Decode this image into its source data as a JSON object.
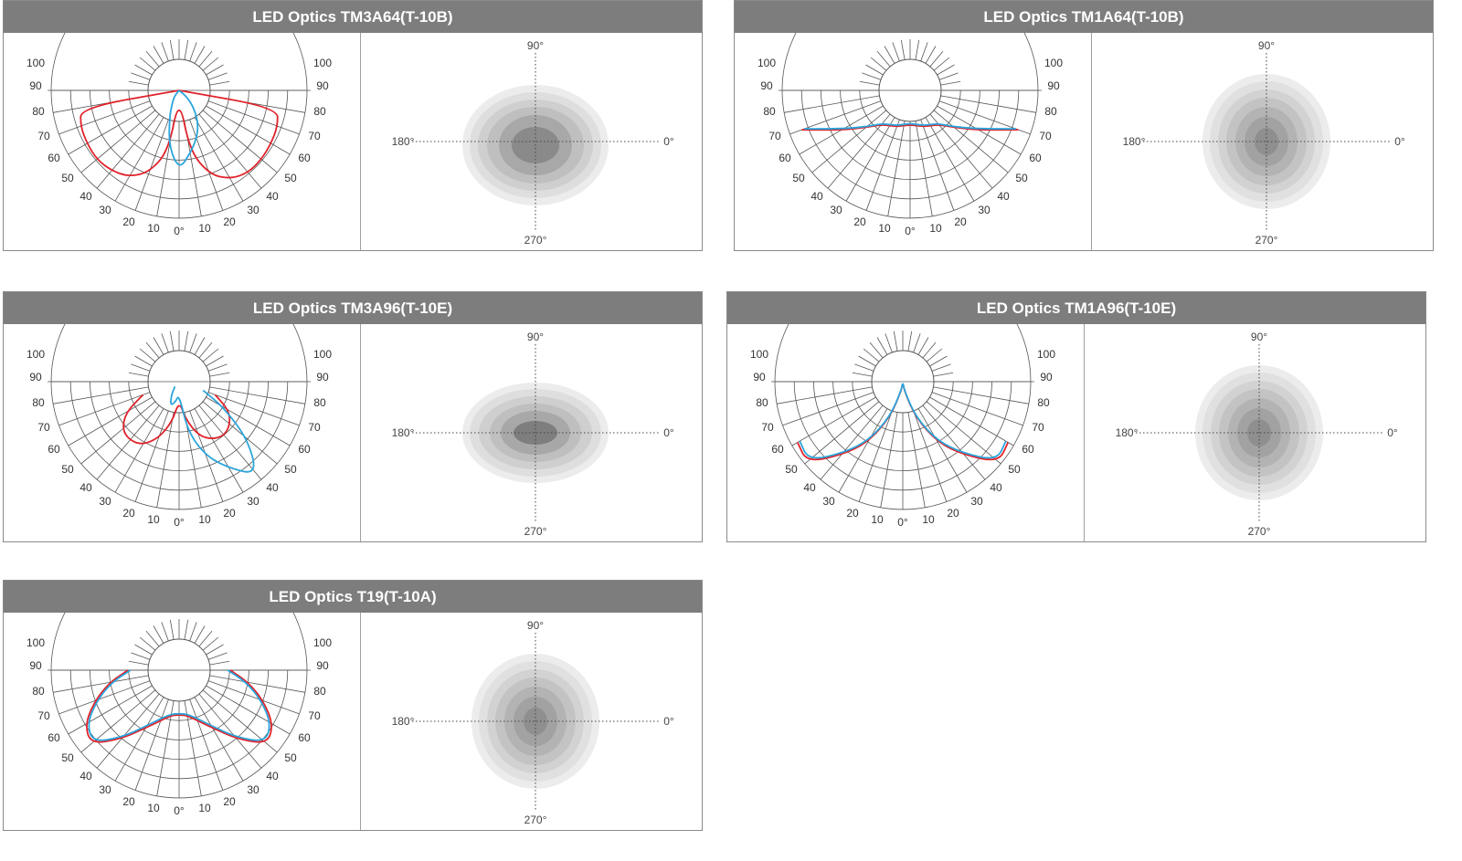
{
  "chart_data": [
    {
      "type": "polar",
      "title": "LED Optics TM3A64(T-10B)",
      "profile": "asym",
      "radial_ticks": [
        "100",
        "90",
        "80",
        "70",
        "60",
        "50",
        "40",
        "30",
        "20",
        "10",
        "0°",
        "10",
        "20",
        "30",
        "40",
        "50",
        "60",
        "70",
        "80",
        "90",
        "100"
      ],
      "iso_labels": {
        "top": "90°",
        "left": "180°",
        "right": "0°",
        "bottom": "270°"
      },
      "iso_shape": "oval-lobed",
      "series": [
        {
          "color": "#e0222a",
          "values": [
            [
              -90,
              0
            ],
            [
              -80,
              78
            ],
            [
              -70,
              82
            ],
            [
              -60,
              83
            ],
            [
              -50,
              84
            ],
            [
              -40,
              82
            ],
            [
              -30,
              78
            ],
            [
              -20,
              68
            ],
            [
              -10,
              48
            ],
            [
              0,
              5
            ],
            [
              10,
              48
            ],
            [
              20,
              70
            ],
            [
              30,
              80
            ],
            [
              40,
              84
            ],
            [
              50,
              84
            ],
            [
              60,
              83
            ],
            [
              70,
              82
            ],
            [
              80,
              78
            ],
            [
              90,
              0
            ]
          ]
        },
        {
          "color": "#2aa5dc",
          "values": [
            [
              -60,
              0
            ],
            [
              -40,
              5
            ],
            [
              -30,
              10
            ],
            [
              -20,
              22
            ],
            [
              -10,
              45
            ],
            [
              0,
              62
            ],
            [
              10,
              50
            ],
            [
              20,
              40
            ],
            [
              30,
              30
            ],
            [
              40,
              18
            ],
            [
              50,
              8
            ],
            [
              60,
              0
            ]
          ]
        }
      ]
    },
    {
      "type": "polar",
      "title": "LED Optics TM1A64(T-10B)",
      "profile": "sym",
      "radial_ticks": [
        "100",
        "90",
        "80",
        "70",
        "60",
        "50",
        "40",
        "30",
        "20",
        "10",
        "0°",
        "10",
        "20",
        "30",
        "40",
        "50",
        "60",
        "70",
        "80",
        "90",
        "100"
      ],
      "iso_labels": {
        "top": "90°",
        "left": "180°",
        "right": "0°",
        "bottom": "270°"
      },
      "iso_shape": "round",
      "series": [
        {
          "color": "#e0222a",
          "values": [
            [
              -70,
              90
            ],
            [
              -60,
              62
            ],
            [
              -50,
              45
            ],
            [
              -40,
              35
            ],
            [
              -30,
              32
            ],
            [
              -20,
              30
            ],
            [
              -10,
              28
            ],
            [
              0,
              27
            ],
            [
              10,
              28
            ],
            [
              20,
              30
            ],
            [
              30,
              32
            ],
            [
              40,
              35
            ],
            [
              50,
              45
            ],
            [
              60,
              62
            ],
            [
              70,
              90
            ]
          ]
        },
        {
          "color": "#2aa5dc",
          "values": [
            [
              -70,
              88
            ],
            [
              -60,
              60
            ],
            [
              -50,
              44
            ],
            [
              -40,
              34
            ],
            [
              -30,
              31
            ],
            [
              -20,
              29
            ],
            [
              -10,
              27
            ],
            [
              0,
              26
            ],
            [
              10,
              27
            ],
            [
              20,
              29
            ],
            [
              30,
              31
            ],
            [
              40,
              34
            ],
            [
              50,
              44
            ],
            [
              60,
              60
            ],
            [
              70,
              88
            ]
          ]
        }
      ]
    },
    {
      "type": "polar",
      "title": "LED Optics TM3A96(T-10E)",
      "profile": "asym",
      "radial_ticks": [
        "100",
        "90",
        "80",
        "70",
        "60",
        "50",
        "40",
        "30",
        "20",
        "10",
        "0°",
        "10",
        "20",
        "30",
        "40",
        "50",
        "60",
        "70",
        "80",
        "90",
        "100"
      ],
      "iso_labels": {
        "top": "90°",
        "left": "180°",
        "right": "0°",
        "bottom": "270°"
      },
      "iso_shape": "wide-lobed",
      "series": [
        {
          "color": "#e0222a",
          "values": [
            [
              -70,
              30
            ],
            [
              -60,
              48
            ],
            [
              -50,
              58
            ],
            [
              -40,
              60
            ],
            [
              -30,
              57
            ],
            [
              -20,
              47
            ],
            [
              -10,
              32
            ],
            [
              0,
              15
            ],
            [
              10,
              30
            ],
            [
              20,
              45
            ],
            [
              30,
              52
            ],
            [
              40,
              55
            ],
            [
              50,
              52
            ],
            [
              60,
              45
            ],
            [
              70,
              30
            ]
          ]
        },
        {
          "color": "#2aa5dc",
          "values": [
            [
              -40,
              5
            ],
            [
              -30,
              12
            ],
            [
              -20,
              20
            ],
            [
              -10,
              16
            ],
            [
              0,
              10
            ],
            [
              10,
              40
            ],
            [
              20,
              62
            ],
            [
              30,
              78
            ],
            [
              40,
              95
            ],
            [
              50,
              70
            ],
            [
              60,
              40
            ],
            [
              70,
              20
            ]
          ]
        }
      ]
    },
    {
      "type": "polar",
      "title": "LED Optics TM1A96(T-10E)",
      "profile": "batwing",
      "radial_ticks": [
        "100",
        "90",
        "80",
        "70",
        "60",
        "50",
        "40",
        "30",
        "20",
        "10",
        "0°",
        "10",
        "20",
        "30",
        "40",
        "50",
        "60",
        "70",
        "80",
        "90",
        "100"
      ],
      "iso_labels": {
        "top": "90°",
        "left": "180°",
        "right": "0°",
        "bottom": "270°"
      },
      "iso_shape": "round",
      "series": [
        {
          "color": "#e0222a",
          "values": [
            [
              -60,
              95
            ],
            [
              -50,
              98
            ],
            [
              -40,
              75
            ],
            [
              -30,
              55
            ],
            [
              -20,
              30
            ],
            [
              -10,
              8
            ],
            [
              0,
              0
            ],
            [
              10,
              8
            ],
            [
              20,
              30
            ],
            [
              30,
              55
            ],
            [
              40,
              75
            ],
            [
              50,
              98
            ],
            [
              60,
              95
            ]
          ]
        },
        {
          "color": "#2aa5dc",
          "values": [
            [
              -60,
              93
            ],
            [
              -50,
              96
            ],
            [
              -40,
              73
            ],
            [
              -30,
              53
            ],
            [
              -20,
              29
            ],
            [
              -10,
              7
            ],
            [
              0,
              0
            ],
            [
              10,
              7
            ],
            [
              20,
              29
            ],
            [
              30,
              53
            ],
            [
              40,
              73
            ],
            [
              50,
              96
            ],
            [
              60,
              93
            ]
          ]
        }
      ]
    },
    {
      "type": "polar",
      "title": "LED Optics T19(T-10A)",
      "profile": "sym",
      "radial_ticks": [
        "100",
        "90",
        "80",
        "70",
        "60",
        "50",
        "40",
        "30",
        "20",
        "10",
        "0°",
        "10",
        "20",
        "30",
        "40",
        "50",
        "60",
        "70",
        "80",
        "90",
        "100"
      ],
      "iso_labels": {
        "top": "90°",
        "left": "180°",
        "right": "0°",
        "bottom": "270°"
      },
      "iso_shape": "round",
      "series": [
        {
          "color": "#e0222a",
          "values": [
            [
              -90,
              40
            ],
            [
              -80,
              55
            ],
            [
              -70,
              70
            ],
            [
              -60,
              85
            ],
            [
              -50,
              90
            ],
            [
              -40,
              70
            ],
            [
              -30,
              52
            ],
            [
              -20,
              42
            ],
            [
              -10,
              36
            ],
            [
              0,
              35
            ],
            [
              10,
              36
            ],
            [
              20,
              42
            ],
            [
              30,
              52
            ],
            [
              40,
              70
            ],
            [
              50,
              90
            ],
            [
              60,
              85
            ],
            [
              70,
              70
            ],
            [
              80,
              55
            ],
            [
              90,
              40
            ]
          ]
        },
        {
          "color": "#2aa5dc",
          "values": [
            [
              -90,
              38
            ],
            [
              -80,
              53
            ],
            [
              -70,
              68
            ],
            [
              -60,
              83
            ],
            [
              -50,
              88
            ],
            [
              -40,
              68
            ],
            [
              -30,
              50
            ],
            [
              -20,
              40
            ],
            [
              -10,
              35
            ],
            [
              0,
              34
            ],
            [
              10,
              35
            ],
            [
              20,
              40
            ],
            [
              30,
              50
            ],
            [
              40,
              68
            ],
            [
              50,
              88
            ],
            [
              60,
              83
            ],
            [
              70,
              68
            ],
            [
              80,
              53
            ],
            [
              90,
              38
            ]
          ]
        }
      ]
    }
  ]
}
